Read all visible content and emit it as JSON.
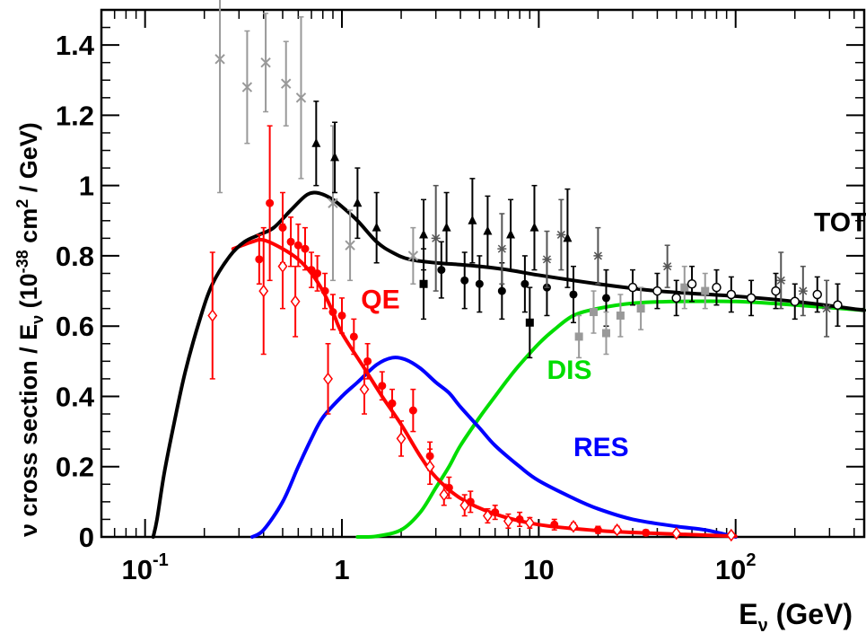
{
  "chart_data": {
    "type": "line",
    "title": "",
    "xlabel": "E",
    "xlabel_sub": "ν",
    "xlabel_unit": " (GeV)",
    "ylabel_parts": {
      "a": "ν cross section / E",
      "sub": "ν",
      "b": " (10",
      "sup1": "-38",
      "c": " cm",
      "sup2": "2",
      "d": " / GeV)"
    },
    "x_scale": "log",
    "xlim": [
      0.06,
      450
    ],
    "ylim": [
      0,
      1.5
    ],
    "x_ticks": [
      {
        "value": 0.1,
        "base": "10",
        "exp": "-1"
      },
      {
        "value": 1,
        "base": "1",
        "exp": ""
      },
      {
        "value": 10,
        "base": "10",
        "exp": ""
      },
      {
        "value": 100,
        "base": "10",
        "exp": "2"
      }
    ],
    "y_ticks": [
      {
        "value": 0,
        "label": "0"
      },
      {
        "value": 0.2,
        "label": "0.2"
      },
      {
        "value": 0.4,
        "label": "0.4"
      },
      {
        "value": 0.6,
        "label": "0.6"
      },
      {
        "value": 0.8,
        "label": "0.8"
      },
      {
        "value": 1.0,
        "label": "1"
      },
      {
        "value": 1.2,
        "label": "1.2"
      },
      {
        "value": 1.4,
        "label": "1.4"
      }
    ],
    "series": [
      {
        "name": "TOTAL",
        "color": "#000000",
        "label_at": [
          250,
          0.87
        ],
        "points": [
          [
            0.11,
            0
          ],
          [
            0.115,
            0.05
          ],
          [
            0.125,
            0.18
          ],
          [
            0.14,
            0.32
          ],
          [
            0.16,
            0.47
          ],
          [
            0.19,
            0.62
          ],
          [
            0.22,
            0.72
          ],
          [
            0.27,
            0.8
          ],
          [
            0.32,
            0.84
          ],
          [
            0.38,
            0.86
          ],
          [
            0.45,
            0.88
          ],
          [
            0.55,
            0.93
          ],
          [
            0.65,
            0.97
          ],
          [
            0.72,
            0.98
          ],
          [
            0.8,
            0.975
          ],
          [
            0.9,
            0.96
          ],
          [
            1.0,
            0.94
          ],
          [
            1.2,
            0.9
          ],
          [
            1.5,
            0.84
          ],
          [
            1.8,
            0.81
          ],
          [
            2.2,
            0.79
          ],
          [
            3.0,
            0.78
          ],
          [
            4.0,
            0.775
          ],
          [
            5.0,
            0.77
          ],
          [
            7.0,
            0.76
          ],
          [
            10,
            0.745
          ],
          [
            20,
            0.72
          ],
          [
            40,
            0.7
          ],
          [
            100,
            0.685
          ],
          [
            200,
            0.67
          ],
          [
            450,
            0.645
          ]
        ]
      },
      {
        "name": "QE",
        "color": "#ff0000",
        "label_at": [
          1.25,
          0.65
        ],
        "points": [
          [
            0.28,
            0.82
          ],
          [
            0.35,
            0.84
          ],
          [
            0.4,
            0.845
          ],
          [
            0.5,
            0.82
          ],
          [
            0.6,
            0.79
          ],
          [
            0.7,
            0.75
          ],
          [
            0.8,
            0.7
          ],
          [
            0.9,
            0.64
          ],
          [
            1.0,
            0.58
          ],
          [
            1.3,
            0.48
          ],
          [
            1.6,
            0.4
          ],
          [
            2.0,
            0.32
          ],
          [
            2.5,
            0.23
          ],
          [
            3.0,
            0.17
          ],
          [
            4.0,
            0.11
          ],
          [
            6.0,
            0.065
          ],
          [
            10,
            0.035
          ],
          [
            20,
            0.018
          ],
          [
            40,
            0.01
          ],
          [
            70,
            0.005
          ],
          [
            100,
            0.002
          ]
        ]
      },
      {
        "name": "RES",
        "color": "#0000ff",
        "label_at": [
          15,
          0.23
        ],
        "points": [
          [
            0.35,
            0
          ],
          [
            0.4,
            0.02
          ],
          [
            0.5,
            0.1
          ],
          [
            0.6,
            0.2
          ],
          [
            0.7,
            0.28
          ],
          [
            0.8,
            0.34
          ],
          [
            1.0,
            0.4
          ],
          [
            1.2,
            0.44
          ],
          [
            1.5,
            0.49
          ],
          [
            1.8,
            0.51
          ],
          [
            2.1,
            0.505
          ],
          [
            2.5,
            0.48
          ],
          [
            3.0,
            0.44
          ],
          [
            3.5,
            0.41
          ],
          [
            4.0,
            0.37
          ],
          [
            5.0,
            0.31
          ],
          [
            6.0,
            0.26
          ],
          [
            8.0,
            0.2
          ],
          [
            10,
            0.16
          ],
          [
            15,
            0.11
          ],
          [
            20,
            0.08
          ],
          [
            30,
            0.05
          ],
          [
            50,
            0.03
          ],
          [
            70,
            0.02
          ],
          [
            100,
            0
          ]
        ]
      },
      {
        "name": "DIS",
        "color": "#00dd00",
        "label_at": [
          11,
          0.45
        ],
        "points": [
          [
            1.2,
            0
          ],
          [
            1.5,
            0.002
          ],
          [
            2.0,
            0.02
          ],
          [
            2.5,
            0.07
          ],
          [
            3.0,
            0.14
          ],
          [
            3.5,
            0.2
          ],
          [
            4.0,
            0.26
          ],
          [
            5.0,
            0.34
          ],
          [
            6.0,
            0.4
          ],
          [
            7.0,
            0.45
          ],
          [
            8.0,
            0.49
          ],
          [
            10,
            0.55
          ],
          [
            12,
            0.59
          ],
          [
            15,
            0.63
          ],
          [
            20,
            0.65
          ],
          [
            30,
            0.665
          ],
          [
            50,
            0.67
          ],
          [
            100,
            0.67
          ],
          [
            200,
            0.66
          ],
          [
            450,
            0.645
          ]
        ]
      }
    ],
    "data_points": [
      {
        "color": "#ff0000",
        "marker": "dot",
        "points": [
          [
            0.38,
            0.79,
            0.07
          ],
          [
            0.43,
            0.95,
            0.22
          ],
          [
            0.5,
            0.88,
            0.1
          ],
          [
            0.55,
            0.84,
            0.07
          ],
          [
            0.6,
            0.83,
            0.06
          ],
          [
            0.65,
            0.82,
            0.06
          ],
          [
            0.7,
            0.76,
            0.05
          ],
          [
            0.75,
            0.75,
            0.05
          ],
          [
            0.82,
            0.7,
            0.05
          ],
          [
            0.9,
            0.64,
            0.05
          ],
          [
            1.0,
            0.63,
            0.05
          ],
          [
            1.15,
            0.57,
            0.05
          ],
          [
            1.35,
            0.5,
            0.05
          ],
          [
            1.6,
            0.43,
            0.04
          ],
          [
            1.8,
            0.38,
            0.04
          ],
          [
            2.3,
            0.36,
            0.06
          ],
          [
            2.8,
            0.23,
            0.04
          ],
          [
            3.5,
            0.14,
            0.03
          ],
          [
            4.5,
            0.1,
            0.03
          ],
          [
            6,
            0.07,
            0.02
          ],
          [
            8,
            0.05,
            0.02
          ],
          [
            12,
            0.035,
            0.015
          ],
          [
            20,
            0.02,
            0.01
          ],
          [
            35,
            0.012,
            0.008
          ]
        ]
      },
      {
        "color": "#ff0000",
        "marker": "diamond",
        "points": [
          [
            0.22,
            0.63,
            0.18
          ],
          [
            0.4,
            0.7,
            0.18
          ],
          [
            0.5,
            0.77,
            0.12
          ],
          [
            0.58,
            0.67,
            0.1
          ],
          [
            0.85,
            0.45,
            0.1
          ],
          [
            1.3,
            0.42,
            0.07
          ],
          [
            2.0,
            0.28,
            0.05
          ],
          [
            2.8,
            0.2,
            0.05
          ],
          [
            3.3,
            0.12,
            0.03
          ],
          [
            4.2,
            0.09,
            0.03
          ],
          [
            5.5,
            0.06,
            0.02
          ],
          [
            7,
            0.045,
            0.02
          ],
          [
            9,
            0.04,
            0.015
          ],
          [
            15,
            0.03,
            0.01
          ],
          [
            25,
            0.02,
            0.01
          ],
          [
            50,
            0.01,
            0.005
          ],
          [
            95,
            0.005,
            0.003
          ]
        ]
      },
      {
        "color": "#999999",
        "marker": "cross",
        "points": [
          [
            0.24,
            1.36,
            0.38
          ],
          [
            0.33,
            1.28,
            0.16
          ],
          [
            0.41,
            1.35,
            0.14
          ],
          [
            0.52,
            1.29,
            0.12
          ],
          [
            0.62,
            1.25,
            0.23
          ],
          [
            0.9,
            0.95,
            0.22
          ],
          [
            1.1,
            0.83,
            0.1
          ],
          [
            2.3,
            0.8,
            0.08
          ]
        ]
      },
      {
        "color": "#000000",
        "marker": "triangle",
        "points": [
          [
            0.74,
            1.12,
            0.12
          ],
          [
            0.92,
            1.08,
            0.1
          ],
          [
            1.2,
            0.95,
            0.1
          ],
          [
            1.5,
            0.88,
            0.1
          ],
          [
            2.6,
            0.86,
            0.1
          ],
          [
            3.4,
            0.88,
            0.1
          ],
          [
            4.6,
            0.9,
            0.12
          ],
          [
            5.5,
            0.87,
            0.1
          ],
          [
            7.2,
            0.86,
            0.1
          ],
          [
            9.5,
            0.88,
            0.12
          ],
          [
            14,
            0.85,
            0.14
          ]
        ]
      },
      {
        "color": "#000000",
        "marker": "dot",
        "points": [
          [
            3.2,
            0.76,
            0.08
          ],
          [
            4.2,
            0.73,
            0.08
          ],
          [
            5.0,
            0.72,
            0.08
          ],
          [
            6.5,
            0.7,
            0.08
          ],
          [
            8.5,
            0.72,
            0.08
          ],
          [
            11,
            0.71,
            0.08
          ],
          [
            15,
            0.69,
            0.08
          ],
          [
            22,
            0.68,
            0.08
          ]
        ]
      },
      {
        "color": "#000000",
        "marker": "square",
        "points": [
          [
            2.6,
            0.72,
            0.1
          ],
          [
            9.0,
            0.61,
            0.1
          ]
        ]
      },
      {
        "color": "#999999",
        "marker": "square",
        "points": [
          [
            16,
            0.57,
            0.06
          ],
          [
            19,
            0.64,
            0.06
          ],
          [
            22,
            0.58,
            0.06
          ],
          [
            26,
            0.63,
            0.06
          ],
          [
            33,
            0.65,
            0.06
          ],
          [
            55,
            0.71,
            0.06
          ],
          [
            70,
            0.7,
            0.05
          ]
        ]
      },
      {
        "color": "#000000",
        "marker": "circle",
        "points": [
          [
            30,
            0.71,
            0.05
          ],
          [
            40,
            0.7,
            0.05
          ],
          [
            50,
            0.68,
            0.05
          ],
          [
            60,
            0.72,
            0.05
          ],
          [
            80,
            0.71,
            0.05
          ],
          [
            95,
            0.69,
            0.05
          ],
          [
            120,
            0.68,
            0.05
          ],
          [
            160,
            0.7,
            0.05
          ],
          [
            200,
            0.67,
            0.05
          ],
          [
            260,
            0.69,
            0.05
          ],
          [
            330,
            0.66,
            0.06
          ]
        ]
      },
      {
        "color": "#555555",
        "marker": "star",
        "points": [
          [
            3.0,
            0.85,
            0.15
          ],
          [
            6.5,
            0.82,
            0.1
          ],
          [
            11,
            0.79,
            0.08
          ],
          [
            13,
            0.86,
            0.1
          ],
          [
            20,
            0.8,
            0.08
          ],
          [
            45,
            0.77,
            0.06
          ],
          [
            170,
            0.73,
            0.08
          ],
          [
            220,
            0.7,
            0.07
          ],
          [
            290,
            0.65,
            0.08
          ]
        ]
      }
    ],
    "legend": "none",
    "grid": false
  }
}
